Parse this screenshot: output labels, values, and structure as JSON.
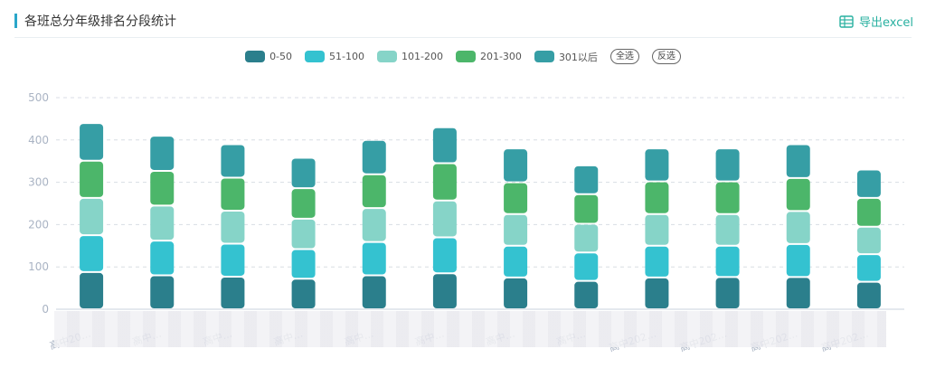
{
  "header": {
    "title": "各班总分年级排名分段统计",
    "export_label": "导出excel"
  },
  "legend": {
    "select_all_label": "全选",
    "invert_label": "反选"
  },
  "colors": {
    "accent": "#2aa6c9",
    "export": "#28b0a0",
    "grid": "#d8dde4",
    "axis_text": "#aab4c4"
  },
  "chart_data": {
    "type": "bar",
    "stacked": true,
    "title": "各班总分年级排名分段统计",
    "xlabel": "",
    "ylabel": "",
    "ylim": [
      0,
      500
    ],
    "yticks": [
      0,
      100,
      200,
      300,
      400,
      500
    ],
    "grid": true,
    "legend_position": "top-center",
    "categories": [
      "高中20…",
      "高中…",
      "高中…",
      "高中…",
      "高中…",
      "高中…",
      "高中…",
      "高中…",
      "高中202…",
      "高中202…",
      "高中202…",
      "高中202…"
    ],
    "series": [
      {
        "name": "0-50",
        "color": "#2b7f8c",
        "values": [
          88,
          80,
          77,
          72,
          80,
          85,
          75,
          67,
          75,
          76,
          76,
          65
        ]
      },
      {
        "name": "51-100",
        "color": "#34c2d0",
        "values": [
          87,
          82,
          78,
          70,
          79,
          85,
          75,
          67,
          75,
          74,
          78,
          65
        ]
      },
      {
        "name": "101-200",
        "color": "#86d4c8",
        "values": [
          88,
          83,
          78,
          72,
          80,
          87,
          75,
          68,
          75,
          75,
          78,
          65
        ]
      },
      {
        "name": "201-300",
        "color": "#4cb66a",
        "values": [
          88,
          82,
          78,
          72,
          80,
          88,
          75,
          70,
          77,
          77,
          78,
          68
        ]
      },
      {
        "name": "301以后",
        "color": "#369ea5",
        "values": [
          89,
          83,
          79,
          72,
          81,
          85,
          80,
          68,
          78,
          78,
          80,
          67
        ]
      }
    ]
  }
}
